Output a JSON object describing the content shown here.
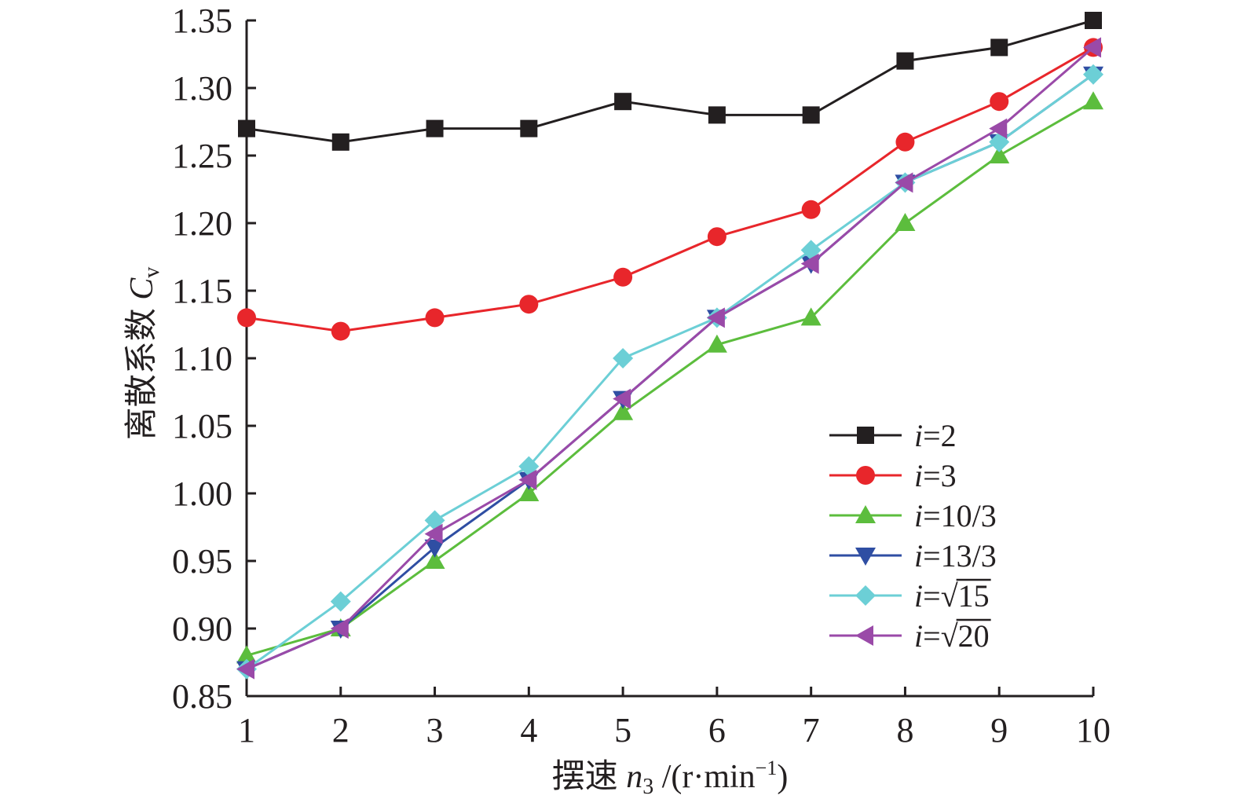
{
  "chart_data": {
    "type": "line",
    "x": [
      1,
      2,
      3,
      4,
      5,
      6,
      7,
      8,
      9,
      10
    ],
    "xlim": [
      1,
      10
    ],
    "ylim": [
      0.85,
      1.35
    ],
    "xticks": [
      "1",
      "2",
      "3",
      "4",
      "5",
      "6",
      "7",
      "8",
      "9",
      "10"
    ],
    "yticks": [
      "0.85",
      "0.90",
      "0.95",
      "1.00",
      "1.05",
      "1.10",
      "1.15",
      "1.20",
      "1.25",
      "1.30",
      "1.35"
    ],
    "xlabel": {
      "prefix": "摆速 ",
      "var": "n",
      "sub": "3",
      "unit_start": " /(r·min",
      "sup": "−1",
      "unit_end": ")"
    },
    "ylabel": {
      "prefix": "离散系数 ",
      "var": "C",
      "sub": "v"
    },
    "grid": false,
    "legend_position": "lower-right",
    "series": [
      {
        "name": "i=2",
        "legend": {
          "var": "i",
          "rest": "=2",
          "sqrt": ""
        },
        "color": "#231f20",
        "marker": "square",
        "values": [
          1.27,
          1.26,
          1.27,
          1.27,
          1.29,
          1.28,
          1.28,
          1.32,
          1.33,
          1.35
        ]
      },
      {
        "name": "i=3",
        "legend": {
          "var": "i",
          "rest": "=3",
          "sqrt": ""
        },
        "color": "#e8262b",
        "marker": "circle",
        "values": [
          1.13,
          1.12,
          1.13,
          1.14,
          1.16,
          1.19,
          1.21,
          1.26,
          1.29,
          1.33
        ]
      },
      {
        "name": "i=10/3",
        "legend": {
          "var": "i",
          "rest": "=10/3",
          "sqrt": ""
        },
        "color": "#5cbd3d",
        "marker": "triangle-up",
        "values": [
          0.88,
          0.9,
          0.95,
          1.0,
          1.06,
          1.11,
          1.13,
          1.2,
          1.25,
          1.29
        ]
      },
      {
        "name": "i=13/3",
        "legend": {
          "var": "i",
          "rest": "=13/3",
          "sqrt": ""
        },
        "color": "#2f4ea3",
        "marker": "triangle-down",
        "values": [
          0.87,
          0.9,
          0.96,
          1.01,
          1.07,
          1.13,
          1.17,
          1.23,
          1.26,
          1.31
        ]
      },
      {
        "name": "i=√15",
        "legend": {
          "var": "i",
          "rest": "=",
          "sqrt": "15"
        },
        "color": "#6ccfd6",
        "marker": "diamond",
        "values": [
          0.87,
          0.92,
          0.98,
          1.02,
          1.1,
          1.13,
          1.18,
          1.23,
          1.26,
          1.31
        ]
      },
      {
        "name": "i=√20",
        "legend": {
          "var": "i",
          "rest": "=",
          "sqrt": "20"
        },
        "color": "#9a4aa8",
        "marker": "triangle-left",
        "values": [
          0.87,
          0.9,
          0.97,
          1.01,
          1.07,
          1.13,
          1.17,
          1.23,
          1.27,
          1.33
        ]
      }
    ]
  }
}
